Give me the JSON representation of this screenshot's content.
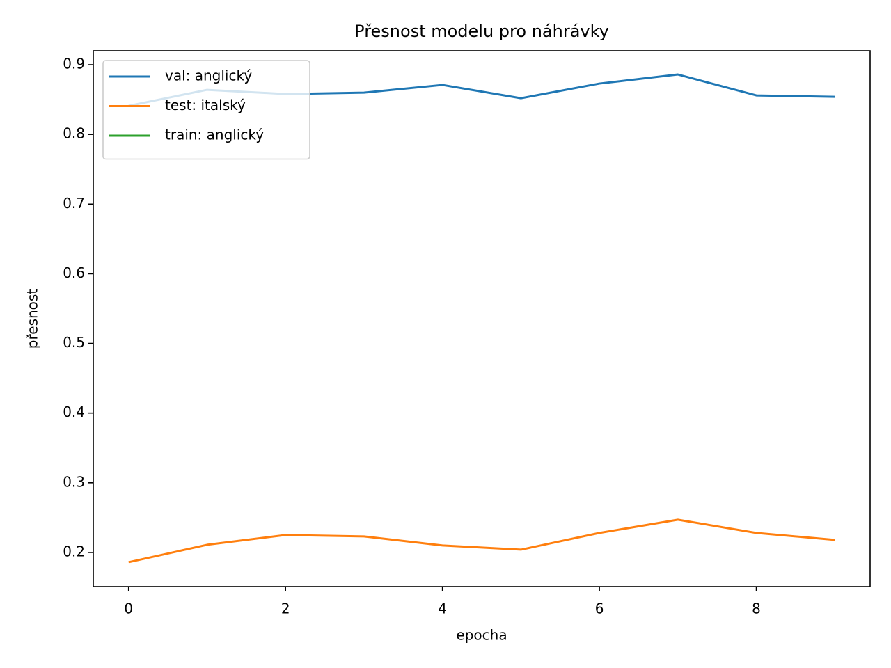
{
  "chart_data": {
    "type": "line",
    "title": "Přesnost modelu pro náhrávky",
    "x_label": "epocha",
    "y_label": "přesnost",
    "x": [
      0,
      1,
      2,
      3,
      4,
      5,
      6,
      7,
      8,
      9
    ],
    "series": [
      {
        "name": "val: anglický",
        "color": "#1f77b4",
        "values": [
          0.841,
          0.864,
          0.858,
          0.86,
          0.871,
          0.852,
          0.873,
          0.886,
          0.856,
          0.854
        ]
      },
      {
        "name": "test: italský",
        "color": "#ff7f0e",
        "values": [
          0.186,
          0.211,
          0.225,
          0.223,
          0.21,
          0.204,
          0.228,
          0.247,
          0.228,
          0.218
        ]
      },
      {
        "name": "train: anglický",
        "color": "#2ca02c",
        "values": [
          null,
          null,
          null,
          null,
          null,
          null,
          null,
          null,
          null,
          null
        ]
      }
    ],
    "xlim": [
      -0.45,
      9.45
    ],
    "xticks": [
      0,
      2,
      4,
      6,
      8
    ],
    "ylim": [
      0.151,
      0.92
    ],
    "yticks": [
      0.2,
      0.3,
      0.4,
      0.5,
      0.6,
      0.7,
      0.8,
      0.9
    ],
    "grid": false,
    "legend": "upper left"
  }
}
